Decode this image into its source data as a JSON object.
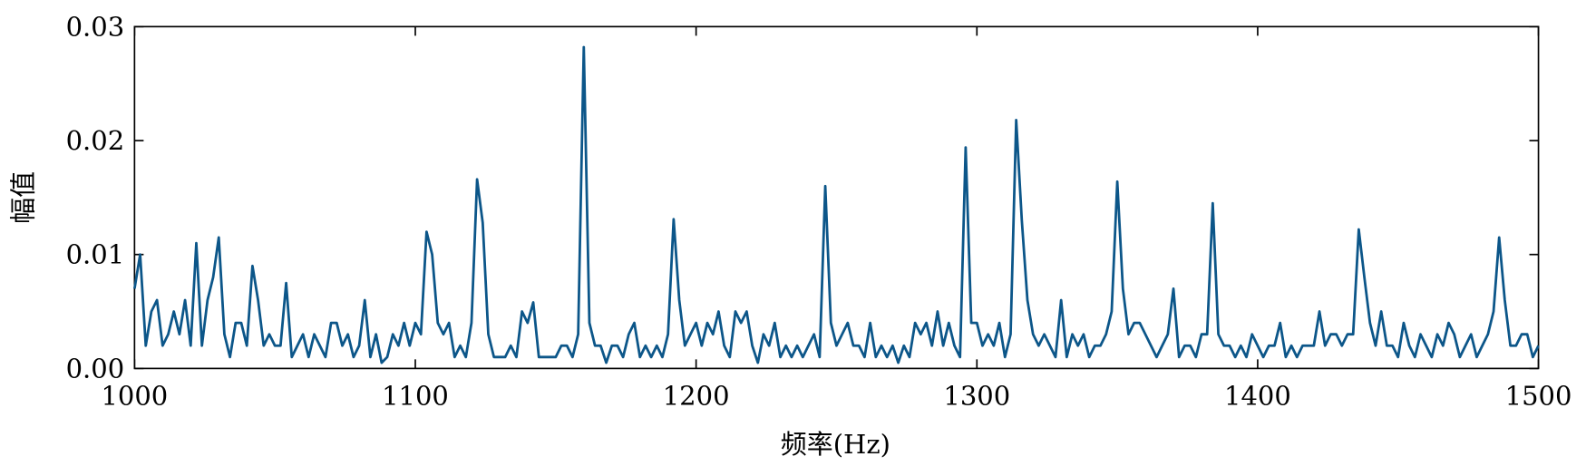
{
  "chart_data": {
    "type": "line",
    "x_label": "频率(Hz)",
    "y_label": "幅值",
    "x": [
      1000,
      1002,
      1004,
      1006,
      1008,
      1010,
      1012,
      1014,
      1016,
      1018,
      1020,
      1022,
      1024,
      1026,
      1028,
      1030,
      1032,
      1034,
      1036,
      1038,
      1040,
      1042,
      1044,
      1046,
      1048,
      1050,
      1052,
      1054,
      1056,
      1058,
      1060,
      1062,
      1064,
      1066,
      1068,
      1070,
      1072,
      1074,
      1076,
      1078,
      1080,
      1082,
      1084,
      1086,
      1088,
      1090,
      1092,
      1094,
      1096,
      1098,
      1100,
      1102,
      1104,
      1106,
      1108,
      1110,
      1112,
      1114,
      1116,
      1118,
      1120,
      1122,
      1124,
      1126,
      1128,
      1130,
      1132,
      1134,
      1136,
      1138,
      1140,
      1142,
      1144,
      1146,
      1148,
      1150,
      1152,
      1154,
      1156,
      1158,
      1160,
      1162,
      1164,
      1166,
      1168,
      1170,
      1172,
      1174,
      1176,
      1178,
      1180,
      1182,
      1184,
      1186,
      1188,
      1190,
      1192,
      1194,
      1196,
      1198,
      1200,
      1202,
      1204,
      1206,
      1208,
      1210,
      1212,
      1214,
      1216,
      1218,
      1220,
      1222,
      1224,
      1226,
      1228,
      1230,
      1232,
      1234,
      1236,
      1238,
      1240,
      1242,
      1244,
      1246,
      1248,
      1250,
      1252,
      1254,
      1256,
      1258,
      1260,
      1262,
      1264,
      1266,
      1268,
      1270,
      1272,
      1274,
      1276,
      1278,
      1280,
      1282,
      1284,
      1286,
      1288,
      1290,
      1292,
      1294,
      1296,
      1298,
      1300,
      1302,
      1304,
      1306,
      1308,
      1310,
      1312,
      1314,
      1316,
      1318,
      1320,
      1322,
      1324,
      1326,
      1328,
      1330,
      1332,
      1334,
      1336,
      1338,
      1340,
      1342,
      1344,
      1346,
      1348,
      1350,
      1352,
      1354,
      1356,
      1358,
      1360,
      1362,
      1364,
      1366,
      1368,
      1370,
      1372,
      1374,
      1376,
      1378,
      1380,
      1382,
      1384,
      1386,
      1388,
      1390,
      1392,
      1394,
      1396,
      1398,
      1400,
      1402,
      1404,
      1406,
      1408,
      1410,
      1412,
      1414,
      1416,
      1418,
      1420,
      1422,
      1424,
      1426,
      1428,
      1430,
      1432,
      1434,
      1436,
      1438,
      1440,
      1442,
      1444,
      1446,
      1448,
      1450,
      1452,
      1454,
      1456,
      1458,
      1460,
      1462,
      1464,
      1466,
      1468,
      1470,
      1472,
      1474,
      1476,
      1478,
      1480,
      1482,
      1484,
      1486,
      1488,
      1490,
      1492,
      1494,
      1496,
      1498,
      1500
    ],
    "series": [
      {
        "color": "#0c5689",
        "values": [
          0.007,
          0.01,
          0.002,
          0.005,
          0.006,
          0.002,
          0.003,
          0.005,
          0.003,
          0.006,
          0.002,
          0.011,
          0.002,
          0.006,
          0.008,
          0.0115,
          0.003,
          0.001,
          0.004,
          0.004,
          0.002,
          0.009,
          0.006,
          0.002,
          0.003,
          0.002,
          0.002,
          0.0075,
          0.001,
          0.002,
          0.003,
          0.001,
          0.003,
          0.002,
          0.001,
          0.004,
          0.004,
          0.002,
          0.003,
          0.001,
          0.002,
          0.006,
          0.001,
          0.003,
          0.0005,
          0.001,
          0.003,
          0.002,
          0.004,
          0.002,
          0.004,
          0.003,
          0.012,
          0.01,
          0.004,
          0.003,
          0.004,
          0.001,
          0.002,
          0.001,
          0.004,
          0.0166,
          0.0128,
          0.003,
          0.001,
          0.001,
          0.001,
          0.002,
          0.001,
          0.005,
          0.004,
          0.0058,
          0.001,
          0.001,
          0.001,
          0.001,
          0.002,
          0.002,
          0.001,
          0.003,
          0.0282,
          0.004,
          0.002,
          0.002,
          0.0005,
          0.002,
          0.002,
          0.001,
          0.003,
          0.004,
          0.001,
          0.002,
          0.001,
          0.002,
          0.001,
          0.003,
          0.0131,
          0.006,
          0.002,
          0.003,
          0.004,
          0.002,
          0.004,
          0.003,
          0.005,
          0.002,
          0.001,
          0.005,
          0.004,
          0.005,
          0.002,
          0.0005,
          0.003,
          0.002,
          0.004,
          0.001,
          0.002,
          0.001,
          0.002,
          0.001,
          0.002,
          0.003,
          0.001,
          0.016,
          0.004,
          0.002,
          0.003,
          0.004,
          0.002,
          0.002,
          0.001,
          0.004,
          0.001,
          0.002,
          0.001,
          0.002,
          0.0005,
          0.002,
          0.001,
          0.004,
          0.003,
          0.004,
          0.002,
          0.005,
          0.002,
          0.004,
          0.002,
          0.001,
          0.0194,
          0.004,
          0.004,
          0.002,
          0.003,
          0.002,
          0.004,
          0.001,
          0.003,
          0.0218,
          0.013,
          0.006,
          0.003,
          0.002,
          0.003,
          0.002,
          0.001,
          0.006,
          0.001,
          0.003,
          0.002,
          0.003,
          0.001,
          0.002,
          0.002,
          0.003,
          0.005,
          0.0164,
          0.007,
          0.003,
          0.004,
          0.004,
          0.003,
          0.002,
          0.001,
          0.002,
          0.003,
          0.007,
          0.001,
          0.002,
          0.002,
          0.001,
          0.003,
          0.003,
          0.0145,
          0.003,
          0.002,
          0.002,
          0.001,
          0.002,
          0.001,
          0.003,
          0.002,
          0.001,
          0.002,
          0.002,
          0.004,
          0.001,
          0.002,
          0.001,
          0.002,
          0.002,
          0.002,
          0.005,
          0.002,
          0.003,
          0.003,
          0.002,
          0.003,
          0.003,
          0.0122,
          0.008,
          0.004,
          0.002,
          0.005,
          0.002,
          0.002,
          0.001,
          0.004,
          0.002,
          0.001,
          0.003,
          0.002,
          0.001,
          0.003,
          0.002,
          0.004,
          0.003,
          0.001,
          0.002,
          0.003,
          0.001,
          0.002,
          0.003,
          0.005,
          0.0115,
          0.006,
          0.002,
          0.002,
          0.003,
          0.003,
          0.001,
          0.002
        ]
      }
    ],
    "xlim": [
      1000,
      1500
    ],
    "xticks": [
      1000,
      1100,
      1200,
      1300,
      1400,
      1500
    ],
    "ylim": [
      0,
      0.03
    ],
    "yticks": [
      {
        "value": 0,
        "label": "0.00"
      },
      {
        "value": 0.01,
        "label": "0.01"
      },
      {
        "value": 0.02,
        "label": "0.02"
      },
      {
        "value": 0.03,
        "label": "0.03"
      }
    ],
    "grid": false
  }
}
